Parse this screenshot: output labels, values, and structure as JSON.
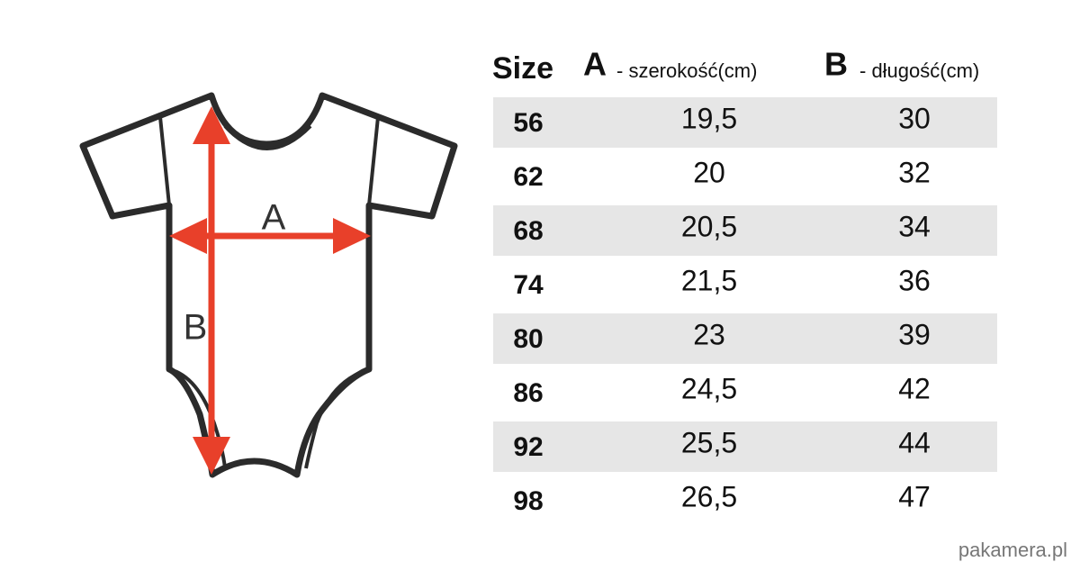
{
  "diagram": {
    "labels": [
      "A",
      "B"
    ]
  },
  "table": {
    "header": [
      "Size",
      "A",
      "- szerokość(cm)",
      "B",
      "- długość(cm)"
    ],
    "rows": [
      [
        "56",
        "19,5",
        "30"
      ],
      [
        "62",
        "20",
        "32"
      ],
      [
        "68",
        "20,5",
        "34"
      ],
      [
        "74",
        "21,5",
        "36"
      ],
      [
        "80",
        "23",
        "39"
      ],
      [
        "86",
        "24,5",
        "42"
      ],
      [
        "92",
        "25,5",
        "44"
      ],
      [
        "98",
        "26,5",
        "47"
      ]
    ]
  },
  "watermark": "pakamera.pl"
}
